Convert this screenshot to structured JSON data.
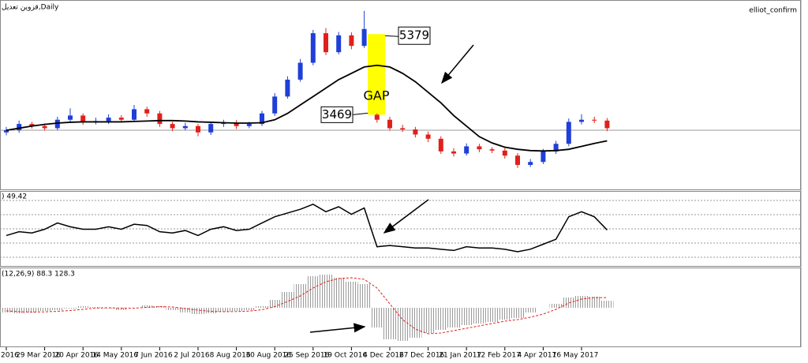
{
  "chart_data": [
    {
      "type": "candlestick",
      "title": "قزوین تعدیل,Daily",
      "indicator_name": "elliot_confirm",
      "categories": [
        "2016",
        null,
        null,
        "29 Mar 2016",
        null,
        null,
        "20 Apr 2016",
        null,
        null,
        "14 May 2016",
        null,
        null,
        "7 Jun 2016",
        null,
        null,
        "2 Jul 2016",
        null,
        null,
        "8 Aug 2016",
        null,
        null,
        "30 Aug 2016",
        null,
        null,
        "25 Sep 2016",
        null,
        null,
        "19 Oct 2016",
        null,
        null,
        "4 Dec 2016",
        null,
        null,
        "27 Dec 2016",
        null,
        null,
        "21 Jan 2017",
        null,
        null,
        "12 Feb 2017",
        null,
        null,
        "4 Apr 2017",
        null,
        null,
        "16 May 2017",
        null,
        null
      ],
      "open": [
        3050,
        3100,
        3250,
        3200,
        3150,
        3350,
        3450,
        3300,
        3320,
        3400,
        3350,
        3600,
        3500,
        3250,
        3150,
        3200,
        3050,
        3250,
        3280,
        3200,
        3250,
        3500,
        3900,
        4300,
        4700,
        5400,
        4950,
        5350,
        5100,
        3469,
        3350,
        3150,
        3120,
        3000,
        2900,
        2600,
        2550,
        2720,
        2650,
        2620,
        2500,
        2280,
        2350,
        2600,
        2780,
        3300,
        3350,
        3330
      ],
      "high": [
        3180,
        3330,
        3300,
        3260,
        3420,
        3620,
        3500,
        3400,
        3480,
        3460,
        3700,
        3660,
        3560,
        3300,
        3280,
        3250,
        3310,
        3350,
        3340,
        3300,
        3560,
        3980,
        4380,
        4790,
        5480,
        5520,
        5430,
        5420,
        5930,
        3500,
        3420,
        3230,
        3180,
        3070,
        2960,
        2680,
        2790,
        2780,
        2700,
        2680,
        2560,
        2420,
        2660,
        2850,
        3380,
        3480,
        3420,
        3390
      ],
      "low": [
        2980,
        3040,
        3140,
        3090,
        3100,
        3270,
        3230,
        3240,
        3250,
        3300,
        3300,
        3420,
        3180,
        3080,
        3100,
        2960,
        2990,
        3180,
        3130,
        3150,
        3200,
        3440,
        3850,
        4250,
        4640,
        4880,
        4900,
        5020,
        5050,
        3280,
        3090,
        3060,
        2930,
        2820,
        2540,
        2480,
        2500,
        2580,
        2560,
        2430,
        2210,
        2230,
        2300,
        2540,
        2720,
        3240,
        3270,
        3080
      ],
      "close": [
        3100,
        3250,
        3200,
        3150,
        3350,
        3450,
        3300,
        3320,
        3400,
        3350,
        3600,
        3500,
        3250,
        3150,
        3200,
        3050,
        3250,
        3280,
        3200,
        3250,
        3500,
        3900,
        4300,
        4700,
        5400,
        4950,
        5350,
        5100,
        5500,
        3350,
        3150,
        3120,
        3000,
        2900,
        2600,
        2550,
        2720,
        2650,
        2620,
        2500,
        2280,
        2350,
        2600,
        2780,
        3300,
        3350,
        3330,
        3150
      ],
      "up_color": "#1f3fd6",
      "down_color": "#e0211b",
      "ma": {
        "color": "#000000",
        "values": [
          3100,
          3150,
          3200,
          3240,
          3270,
          3290,
          3300,
          3300,
          3300,
          3300,
          3310,
          3320,
          3330,
          3330,
          3320,
          3300,
          3290,
          3280,
          3270,
          3270,
          3280,
          3350,
          3500,
          3700,
          3900,
          4100,
          4300,
          4450,
          4600,
          4640,
          4600,
          4450,
          4250,
          4000,
          3750,
          3450,
          3200,
          2950,
          2800,
          2700,
          2650,
          2620,
          2610,
          2620,
          2650,
          2720,
          2790,
          2850
        ]
      },
      "ylim": [
        1700,
        6000
      ],
      "gap": {
        "label": "GAP",
        "top": 5379,
        "bottom": 3469,
        "color": "#ffff00"
      }
    },
    {
      "type": "line",
      "label": ") 49.42",
      "color": "#000000",
      "ylim": [
        20,
        80
      ],
      "values": [
        45,
        48,
        47,
        50,
        55,
        52,
        50,
        50,
        52,
        50,
        54,
        53,
        48,
        47,
        49,
        45,
        50,
        52,
        49,
        50,
        55,
        60,
        63,
        66,
        70,
        64,
        68,
        62,
        67,
        36,
        37,
        36,
        35,
        35,
        34,
        33,
        36,
        35,
        35,
        34,
        32,
        34,
        38,
        42,
        60,
        64,
        60,
        49.42
      ]
    },
    {
      "type": "macd",
      "label": "(12,26,9) 88.3 128.3",
      "ylim": [
        -500,
        500
      ],
      "histogram": {
        "color": "#9a9a9a",
        "values": [
          -60,
          -70,
          -60,
          -40,
          -30,
          -10,
          20,
          10,
          -10,
          -30,
          0,
          30,
          20,
          -30,
          -60,
          -80,
          -70,
          -50,
          -40,
          -30,
          20,
          100,
          200,
          300,
          400,
          420,
          380,
          330,
          300,
          -250,
          -400,
          -420,
          -380,
          -320,
          -280,
          -250,
          -220,
          -200,
          -180,
          -150,
          -130,
          -60,
          0,
          50,
          130,
          150,
          140,
          88.3
        ]
      },
      "signal": {
        "color": "#e0211b",
        "values": [
          -40,
          -50,
          -55,
          -52,
          -45,
          -35,
          -20,
          -5,
          0,
          -5,
          -5,
          5,
          15,
          10,
          -10,
          -30,
          -45,
          -50,
          -48,
          -42,
          -25,
          15,
          80,
          150,
          250,
          330,
          370,
          380,
          360,
          250,
          50,
          -150,
          -270,
          -330,
          -320,
          -290,
          -260,
          -230,
          -200,
          -170,
          -150,
          -120,
          -80,
          -20,
          60,
          110,
          130,
          128.3
        ]
      }
    }
  ]
}
